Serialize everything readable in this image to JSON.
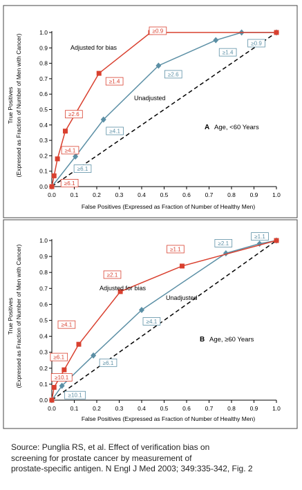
{
  "chart_data": [
    {
      "type": "line",
      "panel_label": "A",
      "panel_title": "Age, <60 Years",
      "xlabel": "False Positives (Expressed as Fraction of Number of Healthy Men)",
      "ylabel_line1": "True Positives",
      "ylabel_line2": "(Expressed as Fraction of Number of Men with Cancer)",
      "xlim": [
        0,
        1
      ],
      "ylim": [
        0,
        1
      ],
      "x_ticks": [
        "0.0",
        "0.1",
        "0.2",
        "0.3",
        "0.4",
        "0.5",
        "0.6",
        "0.7",
        "0.8",
        "0.9",
        "1.0"
      ],
      "y_ticks": [
        "0.0",
        "0.1",
        "0.2",
        "0.3",
        "0.4",
        "0.5",
        "0.6",
        "0.7",
        "0.8",
        "0.9",
        "1.0"
      ],
      "grid": false,
      "reference_line": {
        "x": [
          0,
          1
        ],
        "y": [
          0,
          1
        ],
        "style": "dashed"
      },
      "colors": {
        "adjusted": "#d9402f",
        "unadjusted": "#5b8fa5",
        "reference": "#000000"
      },
      "series": [
        {
          "name": "Adjusted for bias",
          "marker": "square",
          "points": [
            {
              "x": 0.0,
              "y": 0.0
            },
            {
              "x": 0.01,
              "y": 0.07
            },
            {
              "x": 0.025,
              "y": 0.18
            },
            {
              "x": 0.06,
              "y": 0.36
            },
            {
              "x": 0.21,
              "y": 0.735
            },
            {
              "x": 0.44,
              "y": 1.0
            },
            {
              "x": 1.0,
              "y": 1.0
            }
          ],
          "annotations": [
            {
              "text": "≥6.1",
              "x": 0.01,
              "y": 0.07
            },
            {
              "text": "≥4.1",
              "x": 0.025,
              "y": 0.18
            },
            {
              "text": "≥2.6",
              "x": 0.06,
              "y": 0.36
            },
            {
              "text": "≥1.4",
              "x": 0.21,
              "y": 0.735
            },
            {
              "text": "≥0.9",
              "x": 0.44,
              "y": 1.0
            }
          ]
        },
        {
          "name": "Unadjusted",
          "marker": "diamond",
          "points": [
            {
              "x": 0.0,
              "y": 0.0
            },
            {
              "x": 0.105,
              "y": 0.195
            },
            {
              "x": 0.23,
              "y": 0.435
            },
            {
              "x": 0.475,
              "y": 0.785
            },
            {
              "x": 0.73,
              "y": 0.95
            },
            {
              "x": 0.845,
              "y": 1.0
            },
            {
              "x": 1.0,
              "y": 1.0
            }
          ],
          "annotations": [
            {
              "text": "≥6.1",
              "x": 0.105,
              "y": 0.195
            },
            {
              "text": "≥4.1",
              "x": 0.23,
              "y": 0.435
            },
            {
              "text": "≥2.6",
              "x": 0.475,
              "y": 0.785
            },
            {
              "text": "≥1.4",
              "x": 0.73,
              "y": 0.95
            },
            {
              "text": "≥0.9",
              "x": 0.845,
              "y": 1.0
            }
          ]
        }
      ]
    },
    {
      "type": "line",
      "panel_label": "B",
      "panel_title": "Age, ≥60 Years",
      "xlabel": "False Positives (Expressed as Fraction of Number of Healthy Men)",
      "ylabel_line1": "True Positives",
      "ylabel_line2": "(Expressed as Fraction of Number of Men with Cancer)",
      "xlim": [
        0,
        1
      ],
      "ylim": [
        0,
        1
      ],
      "x_ticks": [
        "0.0",
        "0.1",
        "0.2",
        "0.3",
        "0.4",
        "0.5",
        "0.6",
        "0.7",
        "0.8",
        "0.9",
        "1.0"
      ],
      "y_ticks": [
        "0.0",
        "0.1",
        "0.2",
        "0.3",
        "0.4",
        "0.5",
        "0.6",
        "0.7",
        "0.8",
        "0.9",
        "1.0"
      ],
      "grid": false,
      "reference_line": {
        "x": [
          0,
          1
        ],
        "y": [
          0,
          1
        ],
        "style": "dashed"
      },
      "colors": {
        "adjusted": "#d9402f",
        "unadjusted": "#5b8fa5",
        "reference": "#000000"
      },
      "series": [
        {
          "name": "Adjusted for bias",
          "marker": "square",
          "points": [
            {
              "x": 0.0,
              "y": 0.0
            },
            {
              "x": 0.01,
              "y": 0.08
            },
            {
              "x": 0.055,
              "y": 0.19
            },
            {
              "x": 0.12,
              "y": 0.35
            },
            {
              "x": 0.305,
              "y": 0.68
            },
            {
              "x": 0.58,
              "y": 0.84
            },
            {
              "x": 1.0,
              "y": 1.0
            }
          ],
          "annotations": [
            {
              "text": "≥10.1",
              "x": 0.01,
              "y": 0.08
            },
            {
              "text": "≥6.1",
              "x": 0.055,
              "y": 0.19
            },
            {
              "text": "≥4.1",
              "x": 0.12,
              "y": 0.35
            },
            {
              "text": "≥2.1",
              "x": 0.305,
              "y": 0.68
            },
            {
              "text": "≥1.1",
              "x": 0.58,
              "y": 0.84
            }
          ]
        },
        {
          "name": "Unadjusted",
          "marker": "diamond",
          "points": [
            {
              "x": 0.0,
              "y": 0.0
            },
            {
              "x": 0.045,
              "y": 0.09
            },
            {
              "x": 0.185,
              "y": 0.28
            },
            {
              "x": 0.4,
              "y": 0.565
            },
            {
              "x": 0.775,
              "y": 0.92
            },
            {
              "x": 0.925,
              "y": 0.98
            },
            {
              "x": 1.0,
              "y": 1.0
            }
          ],
          "annotations": [
            {
              "text": "≥10.1",
              "x": 0.045,
              "y": 0.09
            },
            {
              "text": "≥6.1",
              "x": 0.185,
              "y": 0.28
            },
            {
              "text": "≥4.1",
              "x": 0.4,
              "y": 0.565
            },
            {
              "text": "≥2.1",
              "x": 0.775,
              "y": 0.92
            },
            {
              "text": "≥1.1",
              "x": 0.925,
              "y": 0.98
            }
          ]
        }
      ]
    }
  ],
  "caption": {
    "lines": [
      "Source: Punglia RS, et al. Effect of verification bias on",
      "screening for prostate cancer by measurement of",
      "prostate-specific antigen. N Engl J Med 2003; 349:335-342, Fig. 2"
    ]
  }
}
